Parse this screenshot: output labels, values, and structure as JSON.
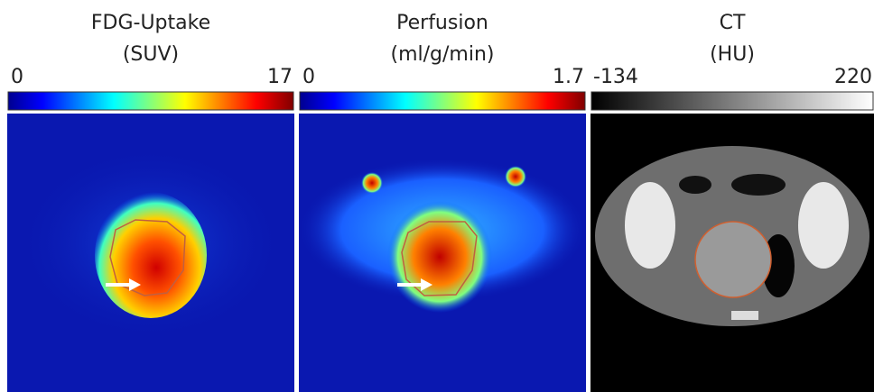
{
  "panels": [
    {
      "title": "FDG-Uptake",
      "unit": "(SUV)",
      "min": 0,
      "max": 17
    },
    {
      "title": "Perfusion",
      "unit": "(ml/g/min)",
      "min": 0,
      "max": 1.7
    },
    {
      "title": "CT",
      "unit": "(HU)",
      "min": -134,
      "max": 220
    }
  ]
}
